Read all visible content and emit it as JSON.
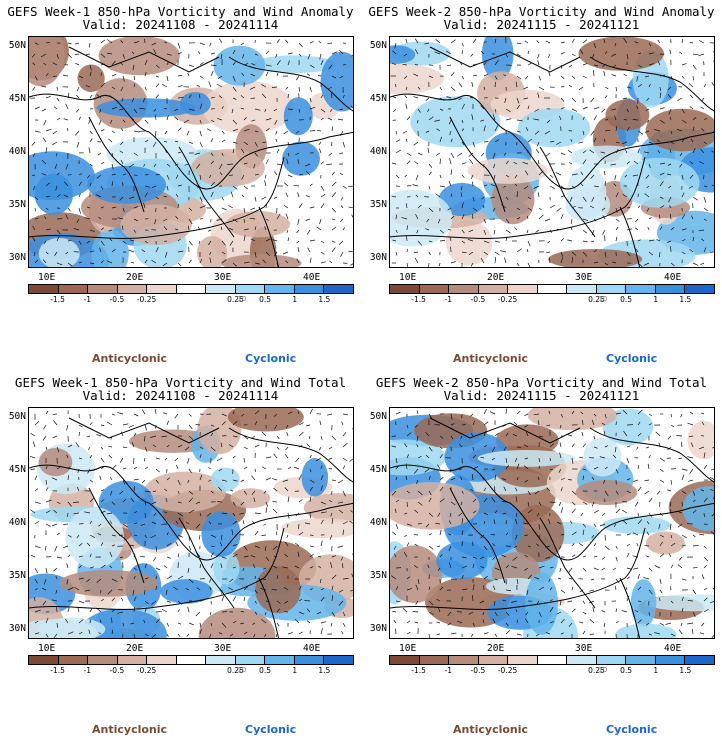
{
  "panels": [
    {
      "title_line1": "GEFS Week-1 850-hPa Vorticity and Wind Anomaly",
      "title_line2": "Valid: 20241108 - 20241114"
    },
    {
      "title_line1": "GEFS Week-2 850-hPa Vorticity and Wind Anomaly",
      "title_line2": "Valid: 20241115 - 20241121"
    },
    {
      "title_line1": "GEFS Week-1 850-hPa Vorticity and Wind Total",
      "title_line2": "Valid: 20241108 - 20241114"
    },
    {
      "title_line1": "GEFS Week-2 850-hPa Vorticity and Wind Total",
      "title_line2": "Valid: 20241115 - 20241121"
    }
  ],
  "lat_labels": [
    "50N",
    "45N",
    "40N",
    "35N",
    "30N"
  ],
  "lon_labels": [
    "10E",
    "20E",
    "30E",
    "40E"
  ],
  "colorbar": {
    "labels": [
      "-1.5",
      "-1",
      "-0.5",
      "-0.25",
      "0.25",
      "0.5",
      "1",
      "1.5"
    ],
    "scale_note": "10",
    "colors": [
      "#7a4a36",
      "#9a6a55",
      "#b58c7c",
      "#d4b0a2",
      "#ecd6cc",
      "#ffffff",
      "#cde9f5",
      "#9fd8f2",
      "#64b5ea",
      "#3b8fdf",
      "#1e66cc"
    ]
  },
  "legend": {
    "anticyclonic": "Anticyclonic",
    "cyclonic": "Cyclonic"
  }
}
